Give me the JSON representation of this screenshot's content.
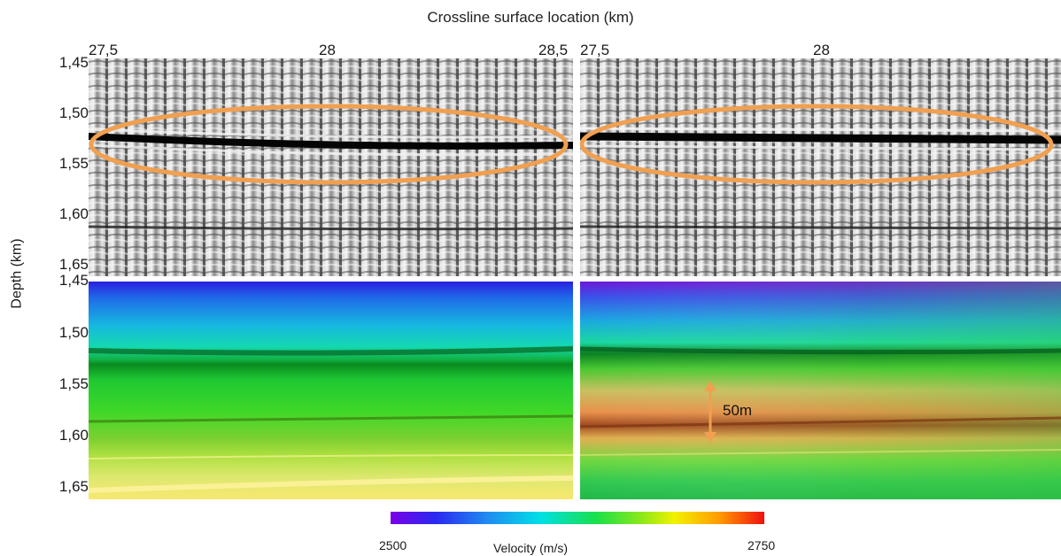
{
  "header": {
    "title": "Crossline surface location (km)"
  },
  "axes": {
    "x_left_ticks": [
      "27,5",
      "28",
      "28,5"
    ],
    "x_right_ticks": [
      "27,5",
      "28"
    ],
    "y_top_ticks": [
      "1,45",
      "1,50",
      "1,55",
      "1,60",
      "1,65"
    ],
    "y_bottom_ticks": [
      "1,45",
      "1,50",
      "1,55",
      "1,60",
      "1,65"
    ],
    "y_label": "Depth (km)"
  },
  "annotation": {
    "thickness_label": "50m"
  },
  "colorbar": {
    "min_label": "2500",
    "max_label": "2750",
    "label": "Velocity (m/s)"
  },
  "colors": {
    "ellipse": "#f0a050",
    "arrow": "#f0a050"
  }
}
